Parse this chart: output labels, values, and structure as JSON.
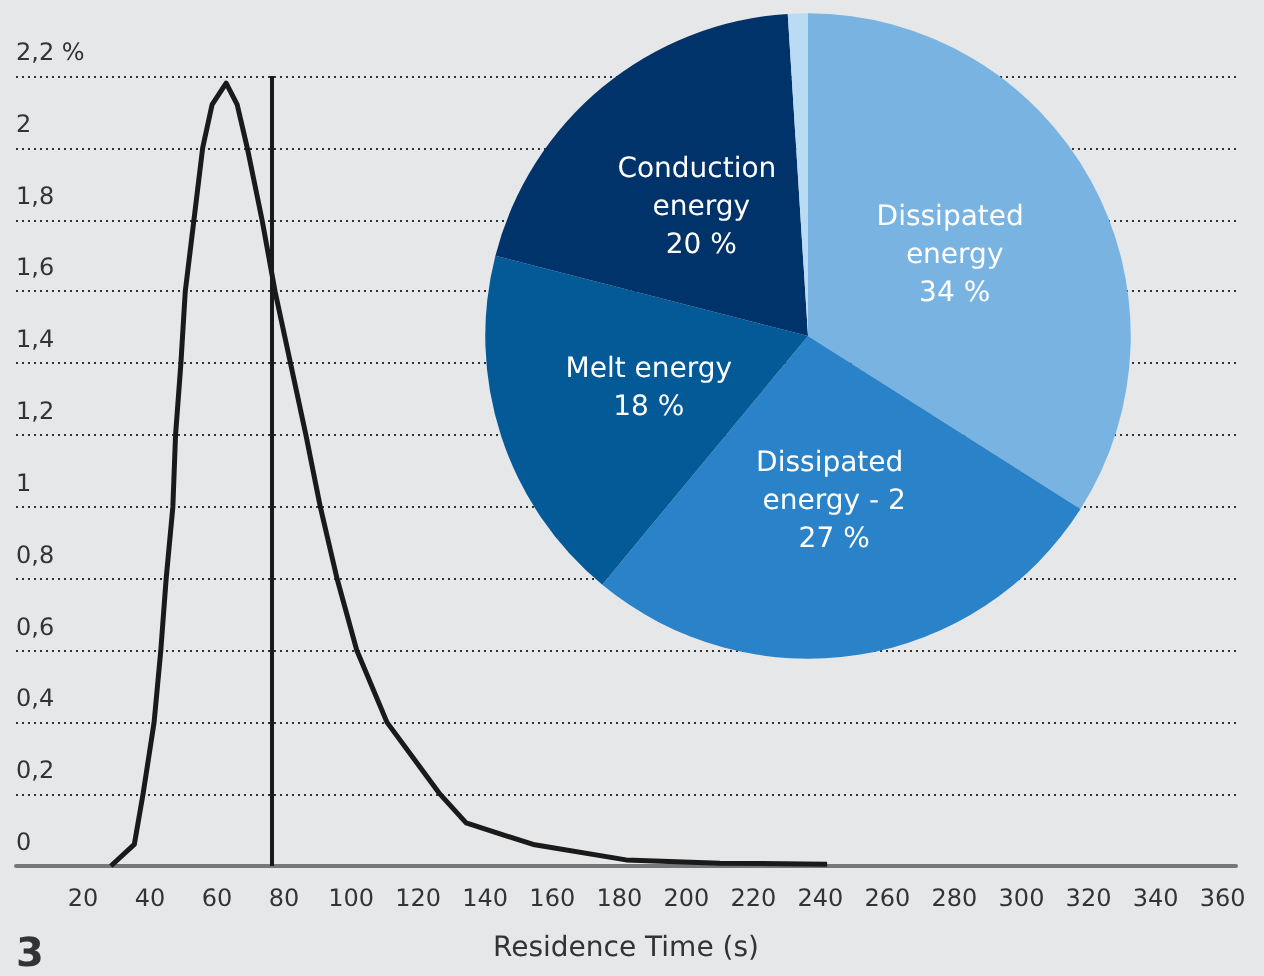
{
  "chart_data": [
    {
      "type": "line",
      "xlabel": "Residence Time (s)",
      "annotations": [
        "3"
      ],
      "x": [
        28.3,
        35.3,
        37.9,
        41.2,
        43.2,
        44.8,
        46.8,
        47.6,
        49.2,
        50.5,
        53.1,
        55.7,
        58.5,
        62.7,
        66,
        69,
        73.4,
        77.3,
        81.9,
        86.5,
        90.8,
        95.8,
        101.7,
        110.7,
        126.5,
        134.3,
        154.3,
        182,
        210,
        242
      ],
      "series": [
        {
          "color": "#1a1a1a",
          "values": [
            0,
            0.06,
            0.2,
            0.4,
            0.6,
            0.8,
            1.0,
            1.2,
            1.4,
            1.6,
            1.8,
            2.0,
            2.12,
            2.18,
            2.12,
            2.0,
            1.8,
            1.6,
            1.4,
            1.2,
            1.0,
            0.8,
            0.6,
            0.4,
            0.2,
            0.12,
            0.06,
            0.017,
            0.008,
            0.005
          ]
        }
      ],
      "xlim": [
        0,
        364
      ],
      "xticks": [
        20,
        40,
        60,
        80,
        100,
        120,
        140,
        160,
        180,
        200,
        220,
        240,
        260,
        280,
        300,
        320,
        340,
        360
      ],
      "ylim": [
        0,
        2.2
      ],
      "yticks": [
        0,
        {
          "value": 0.2,
          "label": "0,2"
        },
        {
          "value": 0.4,
          "label": "0,4"
        },
        {
          "value": 0.6,
          "label": "0,6"
        },
        {
          "value": 0.8,
          "label": "0,8"
        },
        1,
        {
          "value": 1.2,
          "label": "1,2"
        },
        {
          "value": 1.4,
          "label": "1,4"
        },
        {
          "value": 1.6,
          "label": "1,6"
        },
        {
          "value": 1.8,
          "label": "1,8"
        },
        2,
        {
          "value": 2.2,
          "label": "2,2 %"
        }
      ],
      "ref_lines": [
        {
          "axis": "x",
          "value": 76.4,
          "color": "#1a1a1a"
        }
      ],
      "grid": "y",
      "marker": "none",
      "line_style": "solid",
      "legend": false
    },
    {
      "type": "pie",
      "categories": [
        "Dissipated energy",
        "Dissipated energy - 2",
        "Melt energy",
        "Conduction energy",
        null
      ],
      "values": [
        34,
        27,
        18,
        20,
        1
      ],
      "value_labels": [
        "34 %",
        "27 %",
        "18 %",
        "20 %",
        null
      ],
      "colors": [
        "#78b3e2",
        "#2a82c8",
        "#035a97",
        "#00336a",
        "#b9dbf4"
      ],
      "legend": false
    }
  ]
}
